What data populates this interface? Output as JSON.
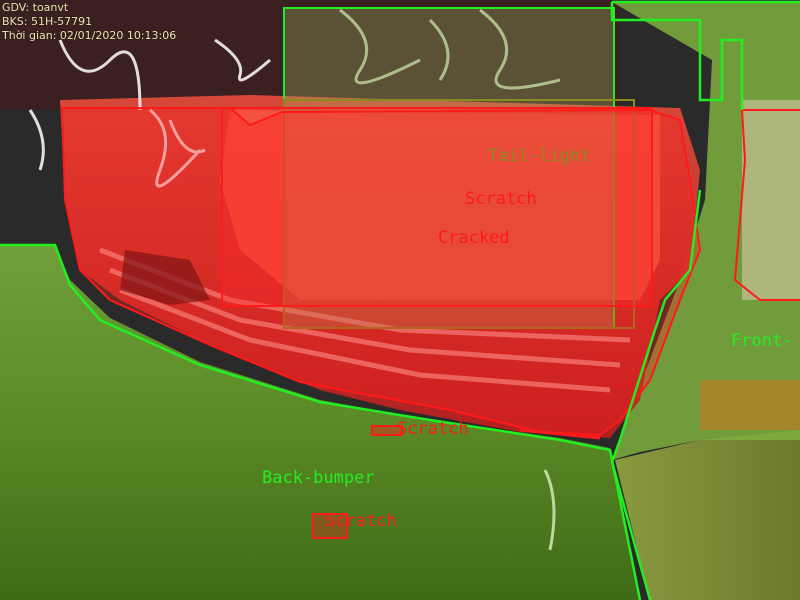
{
  "hud": {
    "line_1": "GDV: toanvt",
    "line_2": "BKS: 51H-57791",
    "line_3": "Thời gian: 02/01/2020 10:13:06"
  },
  "annotations": {
    "tail_light": "Tail-light",
    "scratch_top": "Scratch",
    "cracked": "Cracked",
    "front": "Front-",
    "scratch_middle": "Scratch",
    "back_bumper": "Back-bumper",
    "scratch_bottom": "Scratch"
  },
  "colors": {
    "damage_red": "#ff1a1a",
    "part_green": "#22ee22",
    "tail_light_olive": "#8a8a1e",
    "hud_text": "#f2e8b0"
  }
}
